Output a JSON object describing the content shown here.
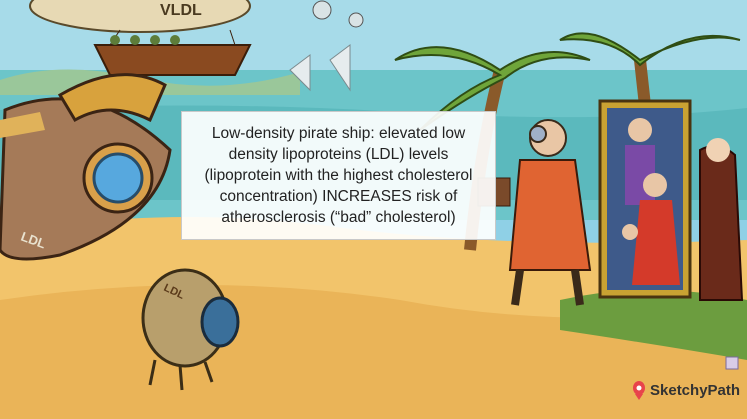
{
  "caption": {
    "text": "Low-density pirate ship: elevated low density lipoproteins (LDL) levels (lipoprotein with the highest cholesterol concentration) INCREASES risk of atherosclerosis (“bad” cholesterol)"
  },
  "scene": {
    "blimp_label": "VLDL",
    "ship_label": "LDL",
    "pod_label": "LDL"
  },
  "brand": {
    "name": "SketchyPath",
    "color": "#e8434b"
  },
  "icons": [
    "blimp-icon",
    "ship-icon",
    "pod-icon",
    "palm-icon",
    "pirate-icon",
    "portrait-icon",
    "logo-icon"
  ]
}
